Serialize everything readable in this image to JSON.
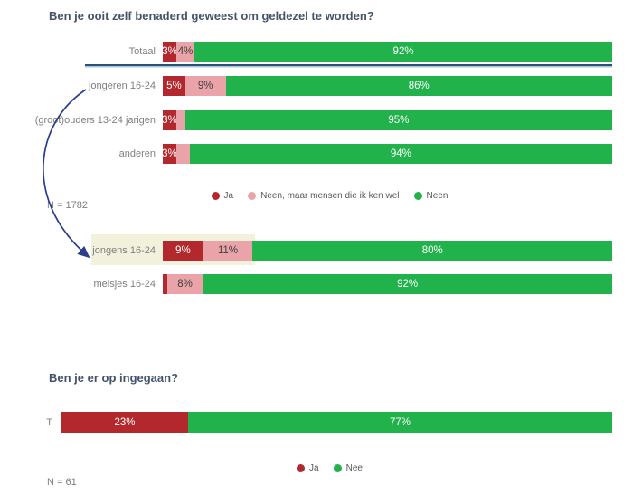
{
  "colors": {
    "ja": "#b3282d",
    "neen_maar": "#eaa4a9",
    "neen": "#21b24b",
    "pink_text": "#404040",
    "white_text": "#ffffff",
    "title": "#44546a",
    "category_label": "#7f7f7f",
    "legend_text": "#595959",
    "divider": "#24527b",
    "annotation_arrow": "#2b3e8c",
    "highlight": "#f1f1dc"
  },
  "chart1": {
    "title": "Ben je ooit zelf benaderd geweest om geldezel te worden?",
    "n_label": "N = 1782",
    "legend": [
      {
        "label": "Ja",
        "color": "#b3282d"
      },
      {
        "label": "Neen, maar mensen die ik ken wel",
        "color": "#eaa4a9"
      },
      {
        "label": "Neen",
        "color": "#21b24b"
      }
    ],
    "rows": [
      {
        "label": "Totaal",
        "highlighted": false,
        "segments": [
          {
            "value": 3,
            "label": "3%"
          },
          {
            "value": 4,
            "label": "4%"
          },
          {
            "value": 92,
            "label": "92%"
          }
        ]
      },
      {
        "label": "jongeren 16-24",
        "highlighted": false,
        "segments": [
          {
            "value": 5,
            "label": "5%"
          },
          {
            "value": 9,
            "label": "9%"
          },
          {
            "value": 86,
            "label": "86%"
          }
        ]
      },
      {
        "label": "(groot)ouders 13-24 jarigen",
        "highlighted": false,
        "segments": [
          {
            "value": 3,
            "label": "3%"
          },
          {
            "value": 2,
            "label": ""
          },
          {
            "value": 95,
            "label": "95%"
          }
        ]
      },
      {
        "label": "anderen",
        "highlighted": false,
        "segments": [
          {
            "value": 3,
            "label": "3%"
          },
          {
            "value": 3,
            "label": ""
          },
          {
            "value": 94,
            "label": "94%"
          }
        ]
      },
      {
        "label": "jongens 16-24",
        "highlighted": true,
        "segments": [
          {
            "value": 9,
            "label": "9%"
          },
          {
            "value": 11,
            "label": "11%"
          },
          {
            "value": 80,
            "label": "80%"
          }
        ]
      },
      {
        "label": "meisjes 16-24",
        "highlighted": false,
        "segments": [
          {
            "value": 1,
            "label": ""
          },
          {
            "value": 8,
            "label": "8%"
          },
          {
            "value": 92,
            "label": "92%"
          }
        ]
      }
    ]
  },
  "chart2": {
    "title": "Ben je er op ingegaan?",
    "n_label": "N = 61",
    "legend": [
      {
        "label": "Ja",
        "color": "#b3282d"
      },
      {
        "label": "Nee",
        "color": "#21b24b"
      }
    ],
    "rows": [
      {
        "label": "T",
        "highlighted": false,
        "segments": [
          {
            "value": 23,
            "label": "23%"
          },
          {
            "value": 77,
            "label": "77%"
          }
        ]
      }
    ]
  },
  "chart_data": [
    {
      "type": "bar",
      "orientation": "horizontal",
      "stacked": true,
      "unit": "%",
      "title": "Ben je ooit zelf benaderd geweest om geldezel te worden?",
      "sample_size_label": "N = 1782",
      "categories": [
        "Totaal",
        "jongeren 16-24",
        "(groot)ouders 13-24 jarigen",
        "anderen",
        "jongens 16-24",
        "meisjes 16-24"
      ],
      "series": [
        {
          "name": "Ja",
          "values": [
            3,
            5,
            3,
            3,
            9,
            1
          ]
        },
        {
          "name": "Neen, maar mensen die ik ken wel",
          "values": [
            4,
            9,
            2,
            3,
            11,
            8
          ]
        },
        {
          "name": "Neen",
          "values": [
            92,
            86,
            95,
            94,
            80,
            92
          ]
        }
      ],
      "legend_position": "center-below-anderen",
      "annotations": [
        {
          "type": "arrow",
          "from": "jongeren 16-24",
          "to": "jongens 16-24"
        },
        {
          "type": "highlight",
          "target": "jongens 16-24"
        },
        {
          "type": "divider-line",
          "below": "Totaal"
        }
      ]
    },
    {
      "type": "bar",
      "orientation": "horizontal",
      "stacked": true,
      "unit": "%",
      "title": "Ben je er op ingegaan?",
      "sample_size_label": "N = 61",
      "categories": [
        "T"
      ],
      "series": [
        {
          "name": "Ja",
          "values": [
            23
          ]
        },
        {
          "name": "Nee",
          "values": [
            77
          ]
        }
      ],
      "legend_position": "center-below"
    }
  ]
}
